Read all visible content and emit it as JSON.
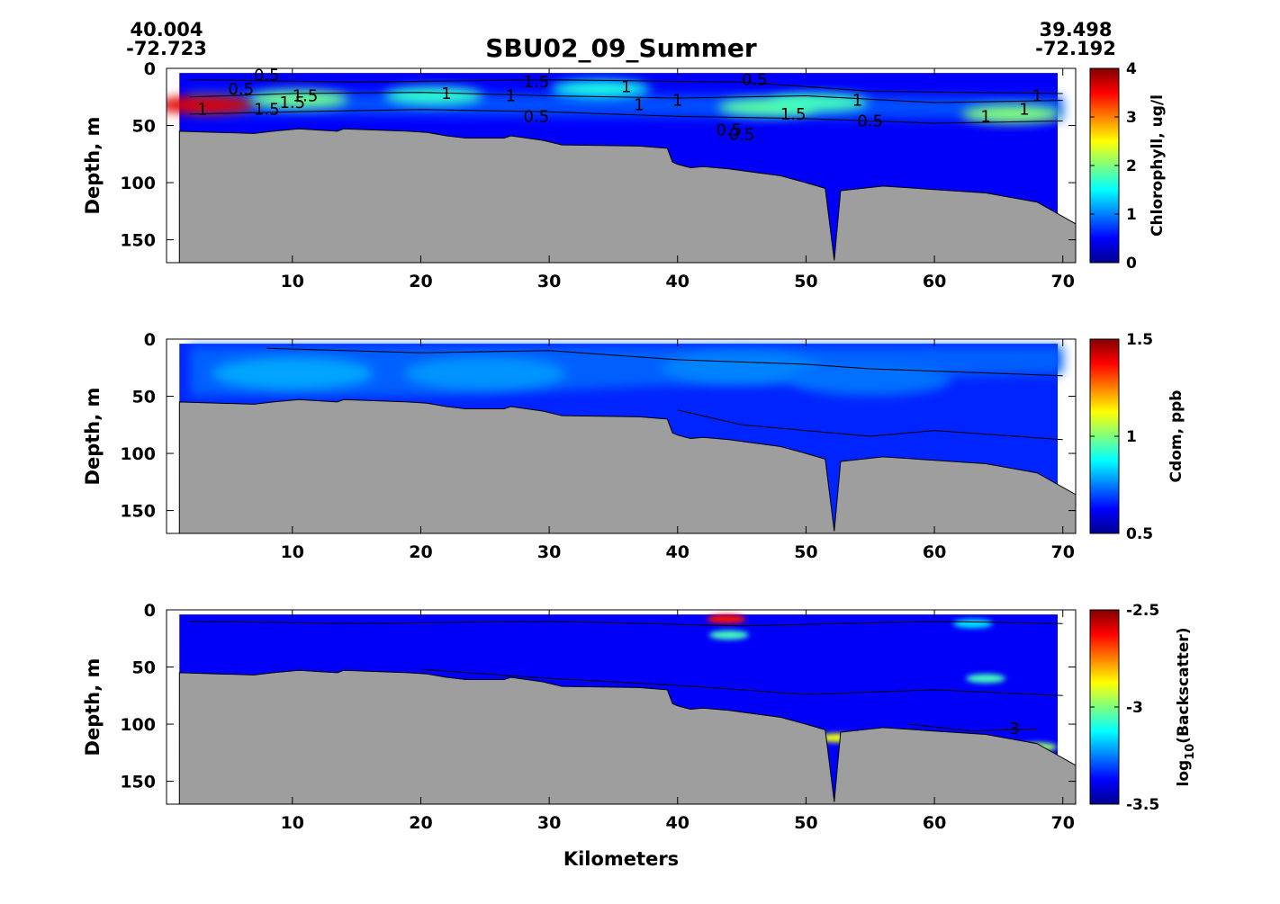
{
  "figure": {
    "title": "SBU02_09_Summer",
    "start_coord": {
      "lat": "40.004",
      "lon": "-72.723"
    },
    "end_coord": {
      "lat": "39.498",
      "lon": "-72.192"
    },
    "xlabel": "Kilometers"
  },
  "colors": {
    "seafloor": "#9e9e9e",
    "water_low": "#0a1fc4",
    "colormap": "jet"
  },
  "chart_data": [
    {
      "type": "heatmap",
      "name": "chlorophyll",
      "title": "",
      "xlabel": "",
      "ylabel": "Depth, m",
      "xlim": [
        0.2,
        71
      ],
      "ylim": [
        170,
        0
      ],
      "xticks": [
        10,
        20,
        30,
        40,
        50,
        60,
        70
      ],
      "yticks": [
        0,
        50,
        100,
        150
      ],
      "colorbar": {
        "label": "Chlorophyll, ug/l",
        "range": [
          0,
          4
        ],
        "ticks": [
          "0",
          "1",
          "2",
          "3",
          "4"
        ]
      },
      "contour_labels": [
        "0.5",
        "0.5",
        "1.5",
        "1",
        "1",
        "1.5",
        "0.5",
        "1",
        "1",
        "1",
        "0.5",
        "0.5",
        "1",
        "1",
        "1",
        "0.5",
        "1.5",
        "1",
        "0.5",
        "0.5",
        "1.5",
        "1",
        "1.5"
      ],
      "high_patches": [
        {
          "x": 3.2,
          "depth": 32,
          "value": 3.8
        },
        {
          "x": 10.5,
          "depth": 27,
          "value": 1.8
        },
        {
          "x": 21,
          "depth": 24,
          "value": 1.5
        },
        {
          "x": 34,
          "depth": 18,
          "value": 1.4
        },
        {
          "x": 47,
          "depth": 34,
          "value": 1.7
        },
        {
          "x": 51,
          "depth": 30,
          "value": 1.6
        },
        {
          "x": 66,
          "depth": 40,
          "value": 1.9
        }
      ]
    },
    {
      "type": "heatmap",
      "name": "cdom",
      "title": "",
      "xlabel": "",
      "ylabel": "Depth, m",
      "xlim": [
        0.2,
        71
      ],
      "ylim": [
        170,
        0
      ],
      "xticks": [
        10,
        20,
        30,
        40,
        50,
        60,
        70
      ],
      "yticks": [
        0,
        50,
        100,
        150
      ],
      "colorbar": {
        "label": "Cdom, ppb",
        "range": [
          0.5,
          1.5
        ],
        "ticks": [
          "0.5",
          "1",
          "1.5"
        ]
      },
      "high_patches": [
        {
          "x": 10,
          "depth": 30,
          "value": 0.72
        },
        {
          "x": 25,
          "depth": 30,
          "value": 0.7
        },
        {
          "x": 45,
          "depth": 25,
          "value": 0.68
        },
        {
          "x": 55,
          "depth": 35,
          "value": 0.66
        }
      ]
    },
    {
      "type": "heatmap",
      "name": "backscatter",
      "title": "",
      "xlabel": "Kilometers",
      "ylabel": "Depth, m",
      "xlim": [
        0.2,
        71
      ],
      "ylim": [
        170,
        0
      ],
      "xticks": [
        10,
        20,
        30,
        40,
        50,
        60,
        70
      ],
      "yticks": [
        0,
        50,
        100,
        150
      ],
      "colorbar": {
        "label": "log10(Backscatter)",
        "label_base": "log",
        "label_sub": "10",
        "label_rest": "(Backscatter)",
        "range": [
          -3.5,
          -2.5
        ],
        "ticks": [
          "-3.5",
          "-3",
          "-2.5"
        ]
      },
      "contour_labels": [
        "-3"
      ],
      "high_patches": [
        {
          "x": 43.8,
          "depth": 8,
          "value": -2.6
        },
        {
          "x": 44,
          "depth": 22,
          "value": -3.1
        },
        {
          "x": 63,
          "depth": 12,
          "value": -3.2
        },
        {
          "x": 64,
          "depth": 60,
          "value": -3.1
        },
        {
          "x": 68,
          "depth": 120,
          "value": -3.0
        },
        {
          "x": 52.5,
          "depth": 112,
          "value": -2.9
        }
      ]
    }
  ],
  "bathymetry": {
    "x": [
      1.2,
      7,
      8.5,
      10.5,
      13.5,
      14,
      19,
      20.5,
      22,
      23.5,
      26.5,
      27,
      29.5,
      31,
      37,
      39.2,
      39.6,
      40,
      41,
      42,
      44,
      46,
      48,
      50,
      51.5,
      52.2,
      52.7,
      53.5,
      56,
      60,
      64,
      68,
      71
    ],
    "depth": [
      55,
      57,
      55,
      53,
      55,
      53,
      55,
      56,
      59,
      61,
      61,
      59,
      63,
      67,
      68,
      70,
      82,
      84,
      87,
      86,
      88,
      91,
      94,
      100,
      105,
      168,
      107,
      106,
      103,
      106,
      109,
      117,
      136
    ]
  }
}
